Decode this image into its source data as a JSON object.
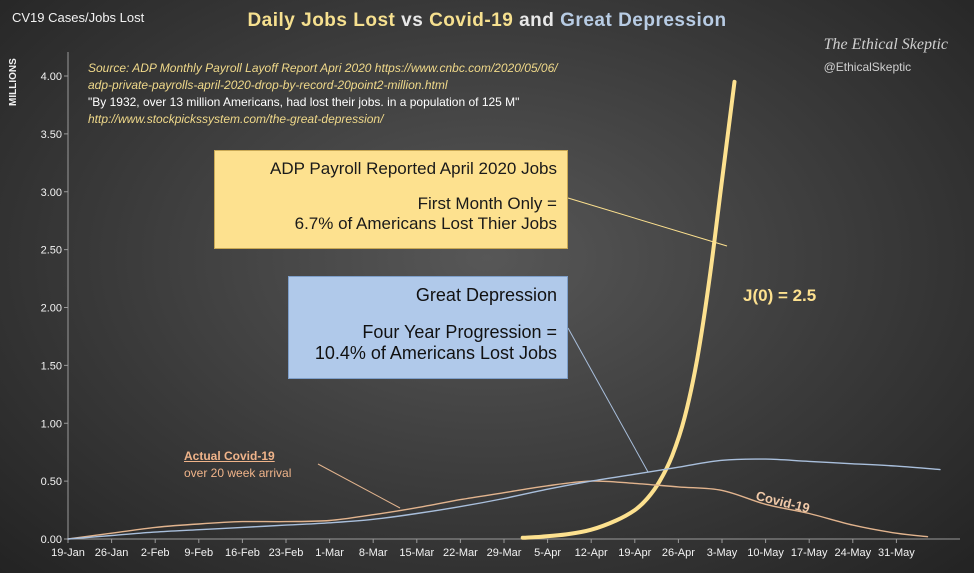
{
  "header": {
    "corner_label": "CV19 Cases/Jobs Lost",
    "title_part1": "Daily Jobs Lost",
    "title_vs": "vs",
    "title_part2": "Covid-19",
    "title_and": "and",
    "title_part3": "Great Depression"
  },
  "branding": {
    "name": "The Ethical Skeptic",
    "handle": "@EthicalSkeptic"
  },
  "source_lines": [
    "Source: ADP Monthly Payroll Layoff Report Apri 2020 https://www.cnbc.com/2020/05/06/",
    "adp-private-payrolls-april-2020-drop-by-record-20point2-million.html",
    "\"By 1932, over 13 million Americans, had lost their jobs. in a population of 125 M\"",
    "http://www.stockpickssystem.com/the-great-depression/"
  ],
  "callouts": {
    "adp": {
      "line1": "ADP Payroll Reported April 2020 Jobs",
      "line2": "First Month Only =",
      "line3": "6.7% of Americans Lost Thier Jobs"
    },
    "depression": {
      "line1": "Great  Depression",
      "line2": "Four Year Progression  =",
      "line3": "10.4% of Americans Lost Jobs"
    },
    "j_label": "J(0) = 2.5",
    "covid_label": "Covid-19",
    "actual_title": "Actual Covid-19",
    "actual_sub": "over 20 week arrival"
  },
  "colors": {
    "jobs": "#fde18f",
    "covid": "#e2b48e",
    "depression": "#a9bfdc",
    "background": "#3f3f3f"
  },
  "chart_data": {
    "type": "line",
    "title": "Daily Jobs Lost vs Covid-19 and Great Depression",
    "ylabel": "MILLIONS",
    "ylim": [
      0,
      4.25
    ],
    "yticks": [
      "0.00",
      "0.50",
      "1.00",
      "1.50",
      "2.00",
      "2.50",
      "3.00",
      "3.50",
      "4.00"
    ],
    "categories": [
      "19-Jan",
      "26-Jan",
      "2-Feb",
      "9-Feb",
      "16-Feb",
      "23-Feb",
      "1-Mar",
      "8-Mar",
      "15-Mar",
      "22-Mar",
      "29-Mar",
      "5-Apr",
      "12-Apr",
      "19-Apr",
      "26-Apr",
      "3-May",
      "10-May",
      "17-May",
      "24-May",
      "31-May"
    ],
    "grid": false,
    "series": [
      {
        "name": "Jobs Lost",
        "x": [
          "2020-04-01",
          "2020-04-04",
          "2020-04-08",
          "2020-04-12",
          "2020-04-16",
          "2020-04-19",
          "2020-04-21",
          "2020-04-23",
          "2020-04-25",
          "2020-04-27",
          "2020-04-29",
          "2020-05-01",
          "2020-05-03",
          "2020-05-05"
        ],
        "values": [
          0.01,
          0.02,
          0.04,
          0.08,
          0.16,
          0.25,
          0.35,
          0.5,
          0.72,
          1.05,
          1.55,
          2.25,
          3.1,
          3.95
        ]
      },
      {
        "name": "Covid-19",
        "x": [
          "2020-01-19",
          "2020-01-26",
          "2020-02-02",
          "2020-02-09",
          "2020-02-16",
          "2020-02-23",
          "2020-03-01",
          "2020-03-08",
          "2020-03-15",
          "2020-03-22",
          "2020-03-29",
          "2020-04-05",
          "2020-04-12",
          "2020-04-19",
          "2020-04-26",
          "2020-05-03",
          "2020-05-10",
          "2020-05-17",
          "2020-05-24",
          "2020-05-31",
          "2020-06-05"
        ],
        "values": [
          0.0,
          0.05,
          0.1,
          0.13,
          0.15,
          0.15,
          0.16,
          0.21,
          0.27,
          0.34,
          0.4,
          0.46,
          0.5,
          0.48,
          0.45,
          0.42,
          0.3,
          0.22,
          0.12,
          0.05,
          0.02
        ]
      },
      {
        "name": "Great Depression",
        "x": [
          "2020-01-19",
          "2020-01-26",
          "2020-02-02",
          "2020-02-09",
          "2020-02-16",
          "2020-02-23",
          "2020-03-01",
          "2020-03-08",
          "2020-03-15",
          "2020-03-22",
          "2020-03-29",
          "2020-04-05",
          "2020-04-12",
          "2020-04-19",
          "2020-04-26",
          "2020-05-03",
          "2020-05-10",
          "2020-05-17",
          "2020-05-24",
          "2020-05-31",
          "2020-06-07"
        ],
        "values": [
          0.0,
          0.03,
          0.06,
          0.08,
          0.1,
          0.12,
          0.14,
          0.17,
          0.22,
          0.28,
          0.35,
          0.43,
          0.5,
          0.56,
          0.62,
          0.68,
          0.69,
          0.67,
          0.65,
          0.63,
          0.6
        ]
      }
    ]
  }
}
